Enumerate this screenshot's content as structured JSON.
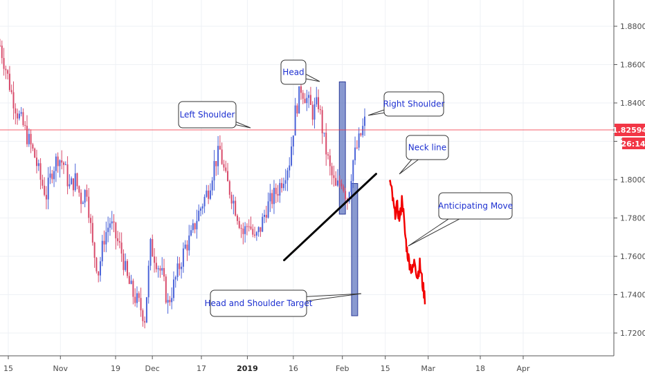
{
  "chart_data": {
    "type": "candlestick",
    "title": "",
    "xlabel": "",
    "ylabel": "",
    "ylim": [
      1.7,
      1.9
    ],
    "y_ticks": [
      "1.88000",
      "1.86000",
      "1.84000",
      "1.82000",
      "1.80000",
      "1.78000",
      "1.76000",
      "1.74000",
      "1.72000"
    ],
    "x_ticks": [
      "15",
      "Nov",
      "19",
      "Dec",
      "17",
      "2019",
      "16",
      "Feb",
      "15",
      "Mar",
      "18",
      "Apr"
    ],
    "x_ticks_bold": [
      "2019"
    ],
    "grid": true,
    "current_price": {
      "label": "1.82594",
      "value": 1.82594,
      "color": "#f23645"
    },
    "countdown": {
      "label": "26:14",
      "color": "#f23645"
    },
    "series": [
      {
        "points": [
          1.87,
          1.858,
          1.845,
          1.835,
          1.828,
          1.82,
          1.812,
          1.8,
          1.792,
          1.805,
          1.812,
          1.808,
          1.796,
          1.8,
          1.79,
          1.795,
          1.765,
          1.752,
          1.77,
          1.778,
          1.77,
          1.762,
          1.748,
          1.74,
          1.735,
          1.728,
          1.765,
          1.758,
          1.75,
          1.735,
          1.745,
          1.755,
          1.765,
          1.77,
          1.78,
          1.788,
          1.795,
          1.808,
          1.815,
          1.8,
          1.792,
          1.782,
          1.772,
          1.778,
          1.768,
          1.775,
          1.785,
          1.79,
          1.795,
          1.802,
          1.81,
          1.835,
          1.848,
          1.842,
          1.835,
          1.84,
          1.82,
          1.805,
          1.795,
          1.8,
          1.79,
          1.81,
          1.82,
          1.83
        ],
        "up_color": "#4a63d8",
        "down_color": "#d84a6a"
      },
      {
        "points": [
          1.8,
          1.792,
          1.782,
          1.786,
          1.779,
          1.791,
          1.773,
          1.762,
          1.756,
          1.752,
          1.758,
          1.749,
          1.756,
          1.746,
          1.738
        ],
        "color": "#f20000"
      }
    ],
    "neckline": {
      "from": {
        "x": "2019-01-13",
        "y": 1.758
      },
      "to": {
        "x": "2019-02-12",
        "y": 1.803
      },
      "color": "#000000"
    },
    "zones": [
      {
        "x_from": "2019-01-31",
        "x_to": "2019-02-02",
        "y_from": 1.782,
        "y_to": 1.851,
        "color": "#6c7fc4"
      },
      {
        "x_from": "2019-02-04",
        "x_to": "2019-02-06",
        "y_from": 1.729,
        "y_to": 1.798,
        "color": "#6c7fc4"
      }
    ],
    "annotations": [
      {
        "text": "Head"
      },
      {
        "text": "Left Shoulder"
      },
      {
        "text": "Right Shoulder"
      },
      {
        "text": "Neck line"
      },
      {
        "text": "Anticipating Move"
      },
      {
        "text": "Head and Shoulder Target"
      }
    ]
  }
}
